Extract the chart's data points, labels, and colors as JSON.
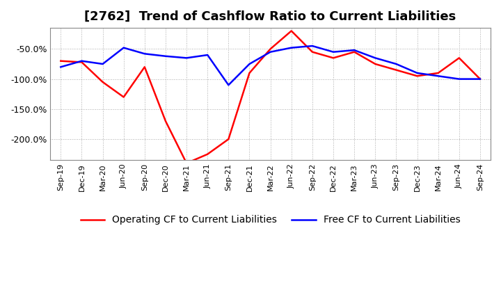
{
  "title": "[2762]  Trend of Cashflow Ratio to Current Liabilities",
  "background_color": "#ffffff",
  "grid_color": "#aaaaaa",
  "ylim": [
    -235,
    -15
  ],
  "yticks": [
    -50,
    -100,
    -150,
    -200
  ],
  "ytick_labels": [
    "-50.0%",
    "-100.0%",
    "-150.0%",
    "-200.0%"
  ],
  "x_labels": [
    "Sep-19",
    "Dec-19",
    "Mar-20",
    "Jun-20",
    "Sep-20",
    "Dec-20",
    "Mar-21",
    "Jun-21",
    "Sep-21",
    "Dec-21",
    "Mar-22",
    "Jun-22",
    "Sep-22",
    "Dec-22",
    "Mar-23",
    "Jun-23",
    "Sep-23",
    "Dec-23",
    "Mar-24",
    "Jun-24",
    "Sep-24"
  ],
  "operating_cf": [
    -70,
    -72,
    -105,
    -130,
    -80,
    -170,
    -240,
    -225,
    -200,
    -90,
    -50,
    -20,
    -55,
    -65,
    -55,
    -75,
    -85,
    -95,
    -90,
    -65,
    -100
  ],
  "free_cf": [
    -80,
    -70,
    -75,
    -48,
    -58,
    -62,
    -65,
    -60,
    -110,
    -75,
    -55,
    -48,
    -45,
    -55,
    -52,
    -65,
    -75,
    -90,
    -95,
    -100,
    -100
  ],
  "operating_color": "#ff0000",
  "free_color": "#0000ff",
  "legend_operating": "Operating CF to Current Liabilities",
  "legend_free": "Free CF to Current Liabilities",
  "title_fontsize": 13,
  "tick_fontsize": 9,
  "legend_fontsize": 10
}
